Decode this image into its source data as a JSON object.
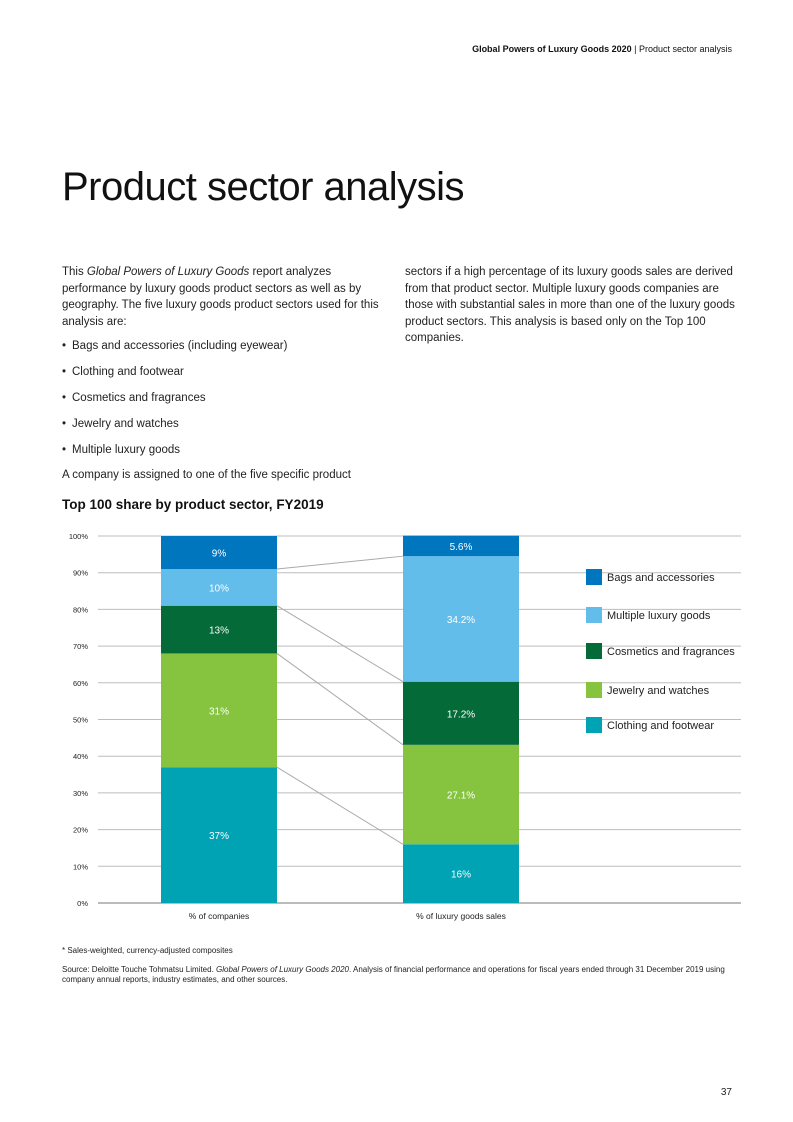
{
  "header": {
    "report": "Global Powers of Luxury Goods 2020",
    "separator": " | ",
    "section": "Product sector analysis"
  },
  "page_title": "Product sector analysis",
  "body": {
    "intro_1": "This ",
    "intro_italic": "Global Powers of Luxury Goods",
    "intro_2": " report analyzes performance by luxury goods product sectors as well as by geography. The five luxury goods product sectors used for this analysis are:",
    "bullets": [
      "Bags and accessories (including eyewear)",
      "Clothing and footwear",
      "Cosmetics and fragrances",
      "Jewelry and watches",
      "Multiple luxury goods"
    ],
    "closing_left": "A company is assigned to one of the five specific product",
    "closing_right": "sectors if a high percentage of its luxury goods sales are derived from that product sector. Multiple luxury goods companies are those with substantial sales in more than one of the luxury goods product sectors. This analysis is based only on the Top 100 companies."
  },
  "chart_data": {
    "type": "bar",
    "stacked": true,
    "title": "Top 100 share by product sector, FY2019",
    "categories": [
      "% of companies",
      "% of luxury goods sales"
    ],
    "ylim": [
      0,
      100
    ],
    "yticks": [
      "0%",
      "10%",
      "20%",
      "30%",
      "40%",
      "50%",
      "60%",
      "70%",
      "80%",
      "90%",
      "100%"
    ],
    "series": [
      {
        "name": "Clothing and footwear",
        "color": "#00A3B4",
        "values": [
          37,
          16
        ],
        "labels": [
          "37%",
          "16%"
        ]
      },
      {
        "name": "Jewelry and watches",
        "color": "#86C440",
        "values": [
          31,
          27.1
        ],
        "labels": [
          "31%",
          "27.1%"
        ]
      },
      {
        "name": "Cosmetics and fragrances",
        "color": "#046A38",
        "values": [
          13,
          17.2
        ],
        "labels": [
          "13%",
          "17.2%"
        ]
      },
      {
        "name": "Multiple luxury goods",
        "color": "#62BDEB",
        "values": [
          10,
          34.2
        ],
        "labels": [
          "10%",
          "34.2%"
        ]
      },
      {
        "name": "Bags and accessories",
        "color": "#0076BE",
        "values": [
          9,
          5.6
        ],
        "labels": [
          "9%",
          "5.6%"
        ]
      }
    ],
    "legend_order": [
      "Bags and accessories",
      "Multiple luxury goods",
      "Cosmetics and fragrances",
      "Jewelry and watches",
      "Clothing and footwear"
    ],
    "legend_position": "right",
    "grid": true
  },
  "footnote": "* Sales-weighted, currency-adjusted composites",
  "source": {
    "prefix": "Source: Deloitte Touche Tohmatsu Limited. ",
    "italic": "Global Powers of Luxury Goods 2020",
    "suffix": ". Analysis of financial performance and operations for fiscal years ended through 31 December 2019 using company annual reports, industry estimates, and other sources."
  },
  "page_number": "37"
}
